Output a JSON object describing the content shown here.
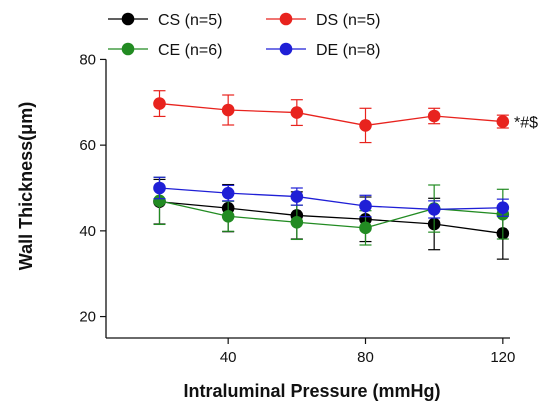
{
  "chart_data": {
    "type": "line",
    "xlabel": "Intraluminal Pressure (mmHg)",
    "ylabel": "Wall Thickness(μm)",
    "x": [
      20,
      40,
      60,
      80,
      100,
      120
    ],
    "xlim": [
      5,
      125
    ],
    "ylim": [
      15,
      85
    ],
    "xticks": [
      40,
      80,
      120
    ],
    "yticks": [
      20,
      40,
      60,
      80
    ],
    "grid": false,
    "legend_position": "top",
    "series": [
      {
        "name": "CS (n=5)",
        "color": "#000000",
        "values": [
          46.8,
          45.3,
          43.6,
          42.7,
          41.6,
          39.4
        ],
        "errors": [
          5.2,
          5.5,
          5.5,
          5.2,
          6.0,
          6.0
        ]
      },
      {
        "name": "CE (n=6)",
        "color": "#228b22",
        "values": [
          47.0,
          43.4,
          42.0,
          40.7,
          45.2,
          43.9
        ],
        "errors": [
          5.5,
          3.5,
          4.0,
          4.0,
          5.5,
          5.8
        ]
      },
      {
        "name": "DS (n=5)",
        "color": "#e8231e",
        "values": [
          69.7,
          68.2,
          67.6,
          64.6,
          66.8,
          65.5
        ],
        "errors": [
          3.0,
          3.5,
          3.0,
          4.0,
          1.8,
          1.5
        ]
      },
      {
        "name": "DE (n=8)",
        "color": "#1f1fd6",
        "values": [
          50.0,
          48.8,
          48.0,
          45.8,
          45.0,
          45.4
        ],
        "errors": [
          2.5,
          1.8,
          2.0,
          2.5,
          2.0,
          2.0
        ]
      }
    ],
    "annotations": [
      {
        "text": "*#$",
        "series": "DS (n=5)"
      }
    ]
  }
}
